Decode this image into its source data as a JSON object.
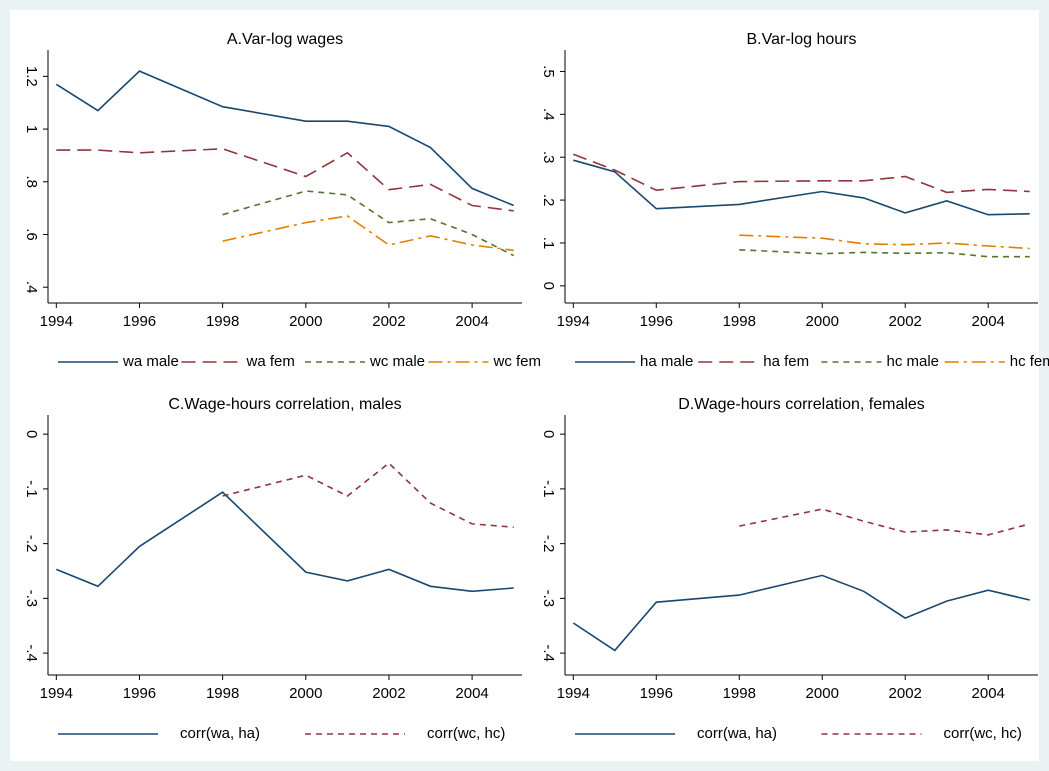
{
  "chart_data": [
    {
      "type": "line",
      "title": "A.Var-log wages",
      "x": [
        1994,
        1995,
        1996,
        1998,
        2000,
        2001,
        2002,
        2003,
        2004,
        2005
      ],
      "xlim": [
        1993.8,
        2005.2
      ],
      "xticks": [
        1994,
        1996,
        1998,
        2000,
        2002,
        2004
      ],
      "ylim": [
        0.34,
        1.3
      ],
      "yticks": [
        {
          "value": 0.4,
          "label": ".4"
        },
        {
          "value": 0.6,
          "label": ".6"
        },
        {
          "value": 0.8,
          "label": ".8"
        },
        1,
        {
          "value": 1.2,
          "label": "1.2"
        }
      ],
      "grid": false,
      "legend": "bottom",
      "series": [
        {
          "name": "wa male",
          "color": "#1a476f",
          "dash": "solid",
          "values": [
            1.17,
            1.07,
            1.22,
            1.085,
            1.03,
            1.03,
            1.01,
            0.93,
            0.775,
            0.71
          ]
        },
        {
          "name": "wa fem",
          "color": "#90353b",
          "dash": "longdash",
          "values": [
            0.92,
            0.92,
            0.91,
            0.925,
            0.82,
            0.91,
            0.77,
            0.79,
            0.71,
            0.69
          ]
        },
        {
          "name": "wc male",
          "color": "#55752f",
          "dash": "dash",
          "values": [
            null,
            null,
            null,
            0.675,
            0.765,
            0.75,
            0.645,
            0.66,
            0.6,
            0.52
          ]
        },
        {
          "name": "wc fem",
          "color": "#e37e00",
          "dash": "dashdot",
          "values": [
            null,
            null,
            null,
            0.575,
            0.645,
            0.67,
            0.56,
            0.595,
            0.56,
            0.54
          ]
        }
      ]
    },
    {
      "type": "line",
      "title": "B.Var-log hours",
      "x": [
        1994,
        1995,
        1996,
        1998,
        2000,
        2001,
        2002,
        2003,
        2004,
        2005
      ],
      "xlim": [
        1993.8,
        2005.2
      ],
      "xticks": [
        1994,
        1996,
        1998,
        2000,
        2002,
        2004
      ],
      "ylim": [
        -0.04,
        0.55
      ],
      "yticks": [
        0,
        {
          "value": 0.1,
          "label": ".1"
        },
        {
          "value": 0.2,
          "label": ".2"
        },
        {
          "value": 0.3,
          "label": ".3"
        },
        {
          "value": 0.4,
          "label": ".4"
        },
        {
          "value": 0.5,
          "label": ".5"
        }
      ],
      "grid": false,
      "legend": "bottom",
      "series": [
        {
          "name": "ha male",
          "color": "#1a476f",
          "dash": "solid",
          "values": [
            0.293,
            0.266,
            0.18,
            0.19,
            0.22,
            0.205,
            0.17,
            0.198,
            0.166,
            0.168
          ]
        },
        {
          "name": "ha fem",
          "color": "#90353b",
          "dash": "longdash",
          "values": [
            0.307,
            0.27,
            0.223,
            0.243,
            0.245,
            0.245,
            0.255,
            0.218,
            0.225,
            0.22
          ]
        },
        {
          "name": "hc male",
          "color": "#55752f",
          "dash": "dash",
          "values": [
            null,
            null,
            null,
            0.084,
            0.075,
            0.078,
            0.076,
            0.077,
            0.068,
            0.068
          ]
        },
        {
          "name": "hc fem",
          "color": "#e37e00",
          "dash": "dashdot",
          "values": [
            null,
            null,
            null,
            0.118,
            0.111,
            0.098,
            0.096,
            0.1,
            0.093,
            0.087
          ]
        }
      ]
    },
    {
      "type": "line",
      "title": "C.Wage-hours correlation, males",
      "x": [
        1994,
        1995,
        1996,
        1998,
        2000,
        2001,
        2002,
        2003,
        2004,
        2005
      ],
      "xlim": [
        1993.8,
        2005.2
      ],
      "xticks": [
        1994,
        1996,
        1998,
        2000,
        2002,
        2004
      ],
      "ylim": [
        -0.44,
        0.035
      ],
      "yticks": [
        {
          "value": -0.4,
          "label": "-.4"
        },
        {
          "value": -0.3,
          "label": "-.3"
        },
        {
          "value": -0.2,
          "label": "-.2"
        },
        {
          "value": -0.1,
          "label": "-.1"
        },
        0
      ],
      "grid": false,
      "legend": "bottom",
      "series": [
        {
          "name": "corr(wa, ha)",
          "color": "#1a476f",
          "dash": "solid",
          "values": [
            -0.247,
            -0.278,
            -0.205,
            -0.106,
            -0.252,
            -0.268,
            -0.247,
            -0.278,
            -0.287,
            -0.281
          ]
        },
        {
          "name": "corr(wc, hc)",
          "color": "#90353b",
          "dash": "dash",
          "values": [
            null,
            null,
            null,
            -0.113,
            -0.075,
            -0.113,
            -0.053,
            -0.126,
            -0.164,
            -0.17
          ]
        }
      ]
    },
    {
      "type": "line",
      "title": "D.Wage-hours correlation, females",
      "x": [
        1994,
        1995,
        1996,
        1998,
        2000,
        2001,
        2002,
        2003,
        2004,
        2005
      ],
      "xlim": [
        1993.8,
        2005.2
      ],
      "xticks": [
        1994,
        1996,
        1998,
        2000,
        2002,
        2004
      ],
      "ylim": [
        -0.44,
        0.035
      ],
      "yticks": [
        {
          "value": -0.4,
          "label": "-.4"
        },
        {
          "value": -0.3,
          "label": "-.3"
        },
        {
          "value": -0.2,
          "label": "-.2"
        },
        {
          "value": -0.1,
          "label": "-.1"
        },
        0
      ],
      "grid": false,
      "legend": "bottom",
      "series": [
        {
          "name": "corr(wa, ha)",
          "color": "#1a476f",
          "dash": "solid",
          "values": [
            -0.345,
            -0.395,
            -0.307,
            -0.294,
            -0.258,
            -0.287,
            -0.336,
            -0.305,
            -0.285,
            -0.303
          ]
        },
        {
          "name": "corr(wc, hc)",
          "color": "#90353b",
          "dash": "dash",
          "values": [
            null,
            null,
            null,
            -0.168,
            -0.137,
            -0.159,
            -0.179,
            -0.175,
            -0.184,
            -0.164
          ]
        }
      ]
    }
  ]
}
